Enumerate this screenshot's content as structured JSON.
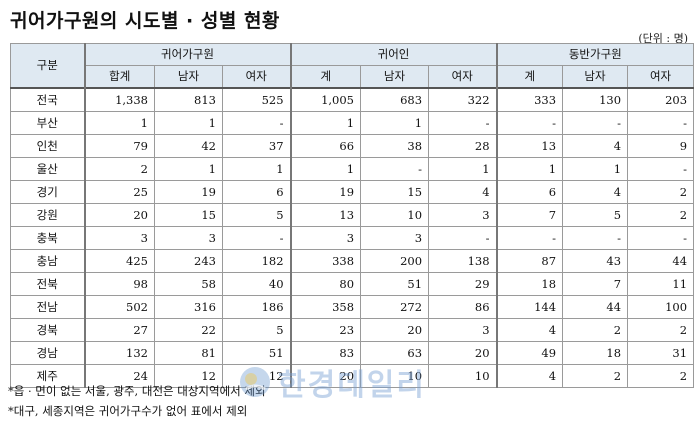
{
  "title": "귀어가구원의 시도별 · 성별 현황",
  "unit": "(단위 : 명)",
  "header": {
    "corner": "구분",
    "groups": [
      "귀어가구원",
      "귀어인",
      "동반가구원"
    ],
    "sub": [
      "합계",
      "남자",
      "여자",
      "계",
      "남자",
      "여자",
      "계",
      "남자",
      "여자"
    ]
  },
  "rows": [
    {
      "region": "전국",
      "values": [
        "1,338",
        "813",
        "525",
        "1,005",
        "683",
        "322",
        "333",
        "130",
        "203"
      ]
    },
    {
      "region": "부산",
      "values": [
        "1",
        "1",
        "-",
        "1",
        "1",
        "-",
        "-",
        "-",
        "-"
      ]
    },
    {
      "region": "인천",
      "values": [
        "79",
        "42",
        "37",
        "66",
        "38",
        "28",
        "13",
        "4",
        "9"
      ]
    },
    {
      "region": "울산",
      "values": [
        "2",
        "1",
        "1",
        "1",
        "-",
        "1",
        "1",
        "1",
        "-"
      ]
    },
    {
      "region": "경기",
      "values": [
        "25",
        "19",
        "6",
        "19",
        "15",
        "4",
        "6",
        "4",
        "2"
      ]
    },
    {
      "region": "강원",
      "values": [
        "20",
        "15",
        "5",
        "13",
        "10",
        "3",
        "7",
        "5",
        "2"
      ]
    },
    {
      "region": "충북",
      "values": [
        "3",
        "3",
        "-",
        "3",
        "3",
        "-",
        "-",
        "-",
        "-"
      ]
    },
    {
      "region": "충남",
      "values": [
        "425",
        "243",
        "182",
        "338",
        "200",
        "138",
        "87",
        "43",
        "44"
      ]
    },
    {
      "region": "전북",
      "values": [
        "98",
        "58",
        "40",
        "80",
        "51",
        "29",
        "18",
        "7",
        "11"
      ]
    },
    {
      "region": "전남",
      "values": [
        "502",
        "316",
        "186",
        "358",
        "272",
        "86",
        "144",
        "44",
        "100"
      ]
    },
    {
      "region": "경북",
      "values": [
        "27",
        "22",
        "5",
        "23",
        "20",
        "3",
        "4",
        "2",
        "2"
      ]
    },
    {
      "region": "경남",
      "values": [
        "132",
        "81",
        "51",
        "83",
        "63",
        "20",
        "49",
        "18",
        "31"
      ]
    },
    {
      "region": "제주",
      "values": [
        "24",
        "12",
        "12",
        "20",
        "10",
        "10",
        "4",
        "2",
        "2"
      ]
    }
  ],
  "notes": [
    "*읍 · 면이 없는 서울, 광주, 대전은 대상지역에서 제외",
    "*대구, 세종지역은 귀어가구수가 없어 표에서 제외"
  ],
  "watermark": {
    "text": "한경데일리",
    "icon": "hankyung-logo-icon"
  }
}
